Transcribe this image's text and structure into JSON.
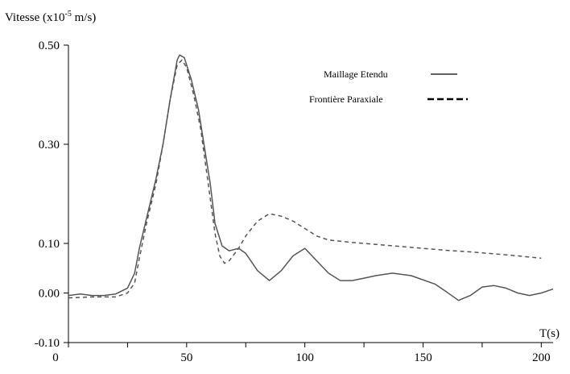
{
  "chart_data": {
    "type": "line",
    "ylabel": "Vitesse (x10",
    "ylabel_exp": "-5",
    "ylabel_unit": " m/s)",
    "xlabel": "T(s)",
    "xlim": [
      0,
      205
    ],
    "ylim": [
      -0.1,
      0.5
    ],
    "y_ticks": [
      {
        "value": -0.1,
        "label": "-0.10"
      },
      {
        "value": 0.0,
        "label": "0.00"
      },
      {
        "value": 0.1,
        "label": "0.10"
      },
      {
        "value": 0.3,
        "label": "0.30"
      },
      {
        "value": 0.5,
        "label": "0.50"
      }
    ],
    "x_ticks": [
      {
        "value": 0,
        "label": "0"
      },
      {
        "value": 50,
        "label": "50"
      },
      {
        "value": 100,
        "label": "100"
      },
      {
        "value": 150,
        "label": "150"
      },
      {
        "value": 200,
        "label": "200"
      }
    ],
    "x_minor_ticks": [
      25,
      75,
      125,
      175
    ],
    "grid": false,
    "legend_position": "top-right",
    "series": [
      {
        "name": "Maillage Etendu",
        "style": "solid",
        "color": "#555555",
        "points": [
          [
            0,
            -0.005
          ],
          [
            5,
            -0.002
          ],
          [
            10,
            -0.005
          ],
          [
            15,
            -0.005
          ],
          [
            20,
            -0.002
          ],
          [
            25,
            0.01
          ],
          [
            28,
            0.04
          ],
          [
            30,
            0.09
          ],
          [
            33,
            0.15
          ],
          [
            37,
            0.23
          ],
          [
            40,
            0.3
          ],
          [
            43,
            0.39
          ],
          [
            46,
            0.47
          ],
          [
            47,
            0.48
          ],
          [
            49,
            0.475
          ],
          [
            52,
            0.43
          ],
          [
            55,
            0.37
          ],
          [
            58,
            0.28
          ],
          [
            60,
            0.22
          ],
          [
            62,
            0.14
          ],
          [
            65,
            0.095
          ],
          [
            68,
            0.085
          ],
          [
            72,
            0.09
          ],
          [
            75,
            0.08
          ],
          [
            80,
            0.045
          ],
          [
            85,
            0.025
          ],
          [
            90,
            0.045
          ],
          [
            95,
            0.075
          ],
          [
            100,
            0.09
          ],
          [
            105,
            0.065
          ],
          [
            110,
            0.04
          ],
          [
            115,
            0.025
          ],
          [
            120,
            0.025
          ],
          [
            125,
            0.03
          ],
          [
            130,
            0.035
          ],
          [
            137,
            0.04
          ],
          [
            145,
            0.035
          ],
          [
            155,
            0.018
          ],
          [
            160,
            0.002
          ],
          [
            165,
            -0.015
          ],
          [
            170,
            -0.005
          ],
          [
            175,
            0.012
          ],
          [
            180,
            0.015
          ],
          [
            185,
            0.01
          ],
          [
            190,
            0.0
          ],
          [
            195,
            -0.005
          ],
          [
            200,
            0.0
          ],
          [
            205,
            0.008
          ]
        ]
      },
      {
        "name": "Frontière Paraxiale",
        "style": "dashed",
        "color": "#555555",
        "points": [
          [
            0,
            -0.01
          ],
          [
            10,
            -0.008
          ],
          [
            20,
            -0.008
          ],
          [
            25,
            0.0
          ],
          [
            28,
            0.02
          ],
          [
            30,
            0.07
          ],
          [
            33,
            0.14
          ],
          [
            37,
            0.22
          ],
          [
            40,
            0.3
          ],
          [
            43,
            0.39
          ],
          [
            46,
            0.46
          ],
          [
            48,
            0.47
          ],
          [
            50,
            0.455
          ],
          [
            53,
            0.4
          ],
          [
            56,
            0.33
          ],
          [
            58,
            0.26
          ],
          [
            60,
            0.19
          ],
          [
            62,
            0.12
          ],
          [
            64,
            0.075
          ],
          [
            66,
            0.06
          ],
          [
            68,
            0.065
          ],
          [
            72,
            0.09
          ],
          [
            75,
            0.115
          ],
          [
            80,
            0.145
          ],
          [
            85,
            0.16
          ],
          [
            90,
            0.155
          ],
          [
            95,
            0.145
          ],
          [
            100,
            0.13
          ],
          [
            105,
            0.115
          ],
          [
            110,
            0.107
          ],
          [
            120,
            0.102
          ],
          [
            130,
            0.098
          ],
          [
            140,
            0.094
          ],
          [
            150,
            0.09
          ],
          [
            160,
            0.086
          ],
          [
            170,
            0.083
          ],
          [
            180,
            0.079
          ],
          [
            190,
            0.075
          ],
          [
            200,
            0.07
          ]
        ]
      }
    ]
  }
}
